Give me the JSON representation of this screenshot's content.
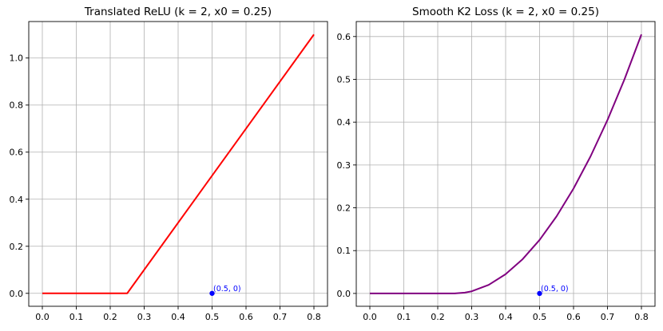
{
  "chart_data": [
    {
      "type": "line",
      "title": "Translated ReLU (k = 2, x0 = 0.25)",
      "xlim": [
        -0.04,
        0.84
      ],
      "ylim": [
        -0.055,
        1.155
      ],
      "xticks": [
        0.0,
        0.1,
        0.2,
        0.3,
        0.4,
        0.5,
        0.6,
        0.7,
        0.8
      ],
      "xtick_labels": [
        "0.0",
        "0.1",
        "0.2",
        "0.3",
        "0.4",
        "0.5",
        "0.6",
        "0.7",
        "0.8"
      ],
      "yticks": [
        0.0,
        0.2,
        0.4,
        0.6,
        0.8,
        1.0
      ],
      "ytick_labels": [
        "0.0",
        "0.2",
        "0.4",
        "0.6",
        "0.8",
        "1.0"
      ],
      "grid": true,
      "series": [
        {
          "color": "#ff0000",
          "x": [
            0.0,
            0.25,
            0.8
          ],
          "y": [
            0.0,
            0.0,
            1.1
          ]
        }
      ],
      "point": {
        "x": 0.5,
        "y": 0.0,
        "color": "#0000ff",
        "label": "(0.5, 0)"
      }
    },
    {
      "type": "line",
      "title": "Smooth K2 Loss (k = 2, x0 = 0.25)",
      "xlim": [
        -0.04,
        0.84
      ],
      "ylim": [
        -0.03,
        0.635
      ],
      "xticks": [
        0.0,
        0.1,
        0.2,
        0.3,
        0.4,
        0.5,
        0.6,
        0.7,
        0.8
      ],
      "xtick_labels": [
        "0.0",
        "0.1",
        "0.2",
        "0.3",
        "0.4",
        "0.5",
        "0.6",
        "0.7",
        "0.8"
      ],
      "yticks": [
        0.0,
        0.1,
        0.2,
        0.3,
        0.4,
        0.5,
        0.6
      ],
      "ytick_labels": [
        "0.0",
        "0.1",
        "0.2",
        "0.3",
        "0.4",
        "0.5",
        "0.6"
      ],
      "grid": true,
      "series": [
        {
          "color": "#800080",
          "x": [
            0.0,
            0.25,
            0.28,
            0.3,
            0.35,
            0.4,
            0.45,
            0.5,
            0.55,
            0.6,
            0.65,
            0.7,
            0.75,
            0.8
          ],
          "y": [
            0.0,
            0.0,
            0.002,
            0.005,
            0.02,
            0.045,
            0.08,
            0.125,
            0.18,
            0.245,
            0.32,
            0.405,
            0.5,
            0.605
          ]
        }
      ],
      "point": {
        "x": 0.5,
        "y": 0.0,
        "color": "#0000ff",
        "label": "(0.5, 0)"
      }
    }
  ]
}
